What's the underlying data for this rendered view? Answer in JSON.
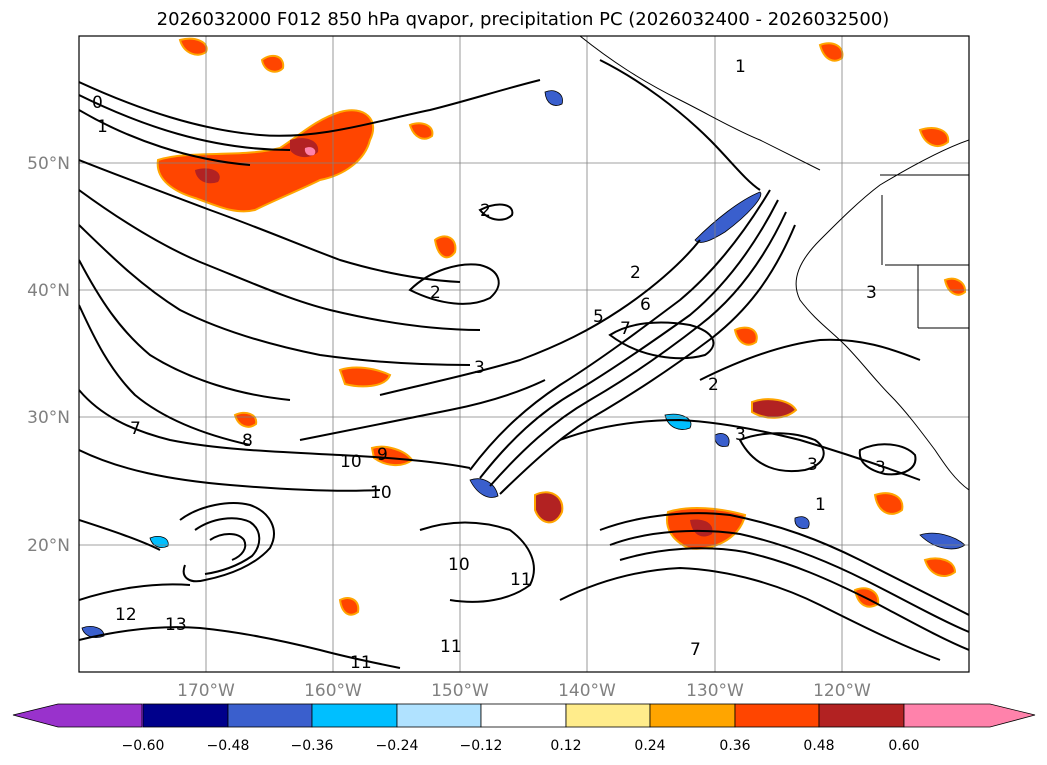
{
  "title": "2026032000 F012 850 hPa qvapor, precipitation PC (2026032400 - 2026032500)",
  "map": {
    "lon_range": [
      -180,
      -110
    ],
    "lat_range": [
      10,
      60
    ],
    "lat_ticks": [
      {
        "value": 20,
        "label": "20°N"
      },
      {
        "value": 30,
        "label": "30°N"
      },
      {
        "value": 40,
        "label": "40°N"
      },
      {
        "value": 50,
        "label": "50°N"
      }
    ],
    "lon_ticks": [
      {
        "value": -170,
        "label": "170°W"
      },
      {
        "value": -160,
        "label": "160°W"
      },
      {
        "value": -150,
        "label": "150°W"
      },
      {
        "value": -140,
        "label": "140°W"
      },
      {
        "value": -130,
        "label": "130°W"
      },
      {
        "value": -120,
        "label": "120°W"
      }
    ],
    "contour_labels": [
      "0",
      "1",
      "1",
      "2",
      "2",
      "2",
      "3",
      "3",
      "3",
      "3",
      "5",
      "6",
      "7",
      "7",
      "8",
      "9",
      "10",
      "10",
      "10",
      "11",
      "11",
      "11",
      "12",
      "13",
      "1",
      "2",
      "3",
      "7"
    ]
  },
  "colorbar": {
    "ticks": [
      "−0.60",
      "−0.48",
      "−0.36",
      "−0.24",
      "−0.12",
      "0.12",
      "0.24",
      "0.36",
      "0.48",
      "0.60"
    ],
    "colors": [
      "#9932cc",
      "#8a2be2",
      "#00008b",
      "#3a5fcd",
      "#00bfff",
      "#b0e2ff",
      "#ffffff",
      "#ffec8b",
      "#ffa500",
      "#ff4500",
      "#b22222",
      "#ff82ab"
    ]
  }
}
